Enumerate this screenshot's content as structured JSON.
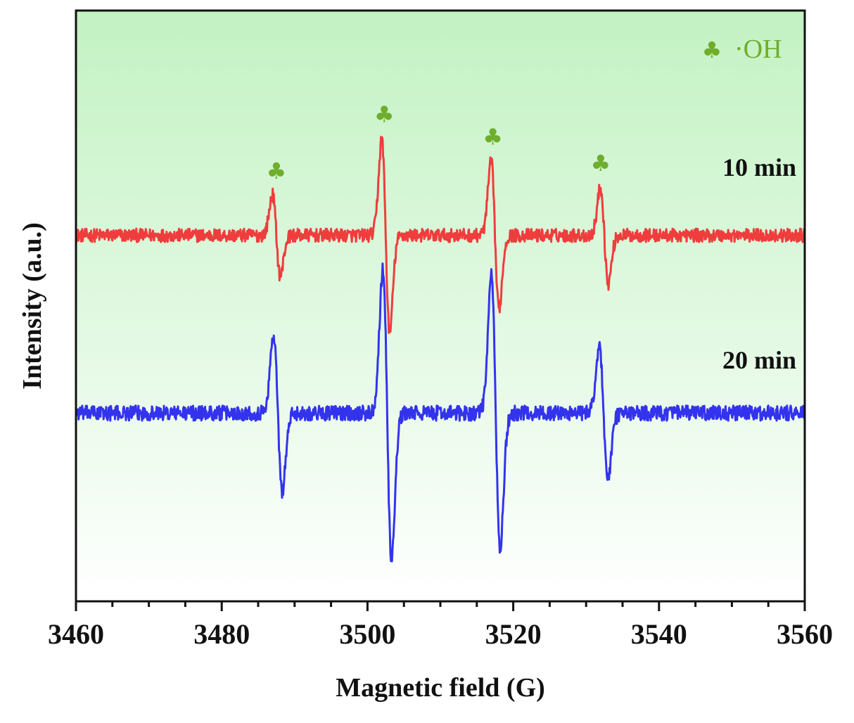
{
  "chart_data": {
    "type": "line",
    "xlabel": "Magnetic field (G)",
    "ylabel": "Intensity (a.u.)",
    "xlim": [
      3460,
      3560
    ],
    "x_major_ticks": [
      3460,
      3480,
      3500,
      3520,
      3540,
      3560
    ],
    "x_tick_labels": [
      "3460",
      "3480",
      "3500",
      "3520",
      "3540",
      "3560"
    ],
    "x_minor_step": 5,
    "y_ticks_shown": false,
    "grid": false,
    "background": {
      "style": "vertical gradient",
      "top_color": "#c3f2c3",
      "bottom_color": "#ffffff"
    },
    "legend": {
      "placement": "top-right",
      "marker": "♣",
      "label": "·OH",
      "color": "#6fae2c"
    },
    "peak_markers": {
      "symbol": "♣",
      "color": "#6fae2c",
      "x": [
        3487.5,
        3502.3,
        3517.2,
        3532.0
      ]
    },
    "series": [
      {
        "name": "10 min",
        "color": "#ef3d3d",
        "baseline": 0.5,
        "noise": 0.08,
        "peaks": [
          {
            "x": 3487.5,
            "amplitude": 1.1,
            "width": 0.55
          },
          {
            "x": 3502.5,
            "amplitude": 2.6,
            "width": 0.55
          },
          {
            "x": 3517.5,
            "amplitude": 2.0,
            "width": 0.55
          },
          {
            "x": 3532.5,
            "amplitude": 1.3,
            "width": 0.55
          }
        ]
      },
      {
        "name": "20 min",
        "color": "#3333ee",
        "baseline": -2.9,
        "noise": 0.09,
        "peaks": [
          {
            "x": 3487.7,
            "amplitude": 2.1,
            "width": 0.6
          },
          {
            "x": 3502.7,
            "amplitude": 3.9,
            "width": 0.6
          },
          {
            "x": 3517.6,
            "amplitude": 3.7,
            "width": 0.6
          },
          {
            "x": 3532.4,
            "amplitude": 1.8,
            "width": 0.6
          }
        ]
      }
    ],
    "ylim": [
      -6.5,
      4.8
    ]
  }
}
